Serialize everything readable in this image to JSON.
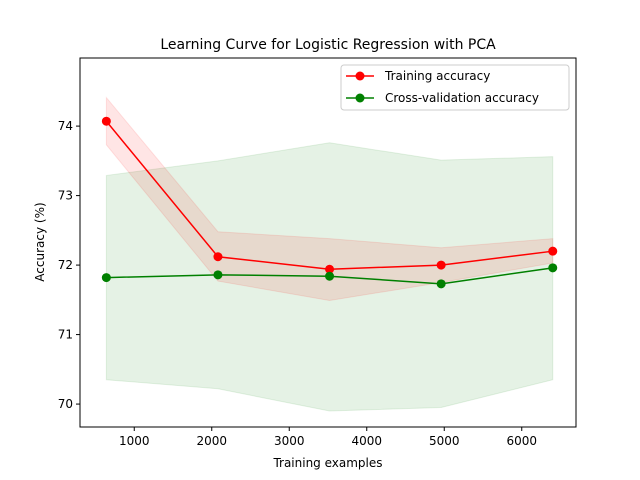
{
  "chart_data": {
    "type": "line",
    "title": "Learning Curve for Logistic Regression with PCA",
    "xlabel": "Training examples",
    "ylabel": "Accuracy (%)",
    "xlim": [
      300,
      6700
    ],
    "ylim": [
      69.67,
      74.98
    ],
    "xticks": [
      1000,
      2000,
      3000,
      4000,
      5000,
      6000
    ],
    "yticks": [
      70,
      71,
      72,
      73,
      74
    ],
    "grid": false,
    "legend_position": "top-right",
    "series": [
      {
        "name": "Training accuracy",
        "color": "#ff0000",
        "band_color": "#ff0000",
        "x": [
          640,
          2080,
          3520,
          4960,
          6400
        ],
        "values": [
          74.07,
          72.12,
          71.94,
          72.0,
          72.2
        ],
        "band_low": [
          73.73,
          71.77,
          71.49,
          71.75,
          72.03
        ],
        "band_high": [
          74.41,
          72.48,
          72.38,
          72.25,
          72.38
        ]
      },
      {
        "name": "Cross-validation accuracy",
        "color": "#008000",
        "band_color": "#008000",
        "x": [
          640,
          2080,
          3520,
          4960,
          6400
        ],
        "values": [
          71.82,
          71.86,
          71.84,
          71.73,
          71.96
        ],
        "band_low": [
          70.35,
          70.22,
          69.9,
          69.95,
          70.35
        ],
        "band_high": [
          73.29,
          73.5,
          73.76,
          73.51,
          73.56
        ]
      }
    ]
  }
}
